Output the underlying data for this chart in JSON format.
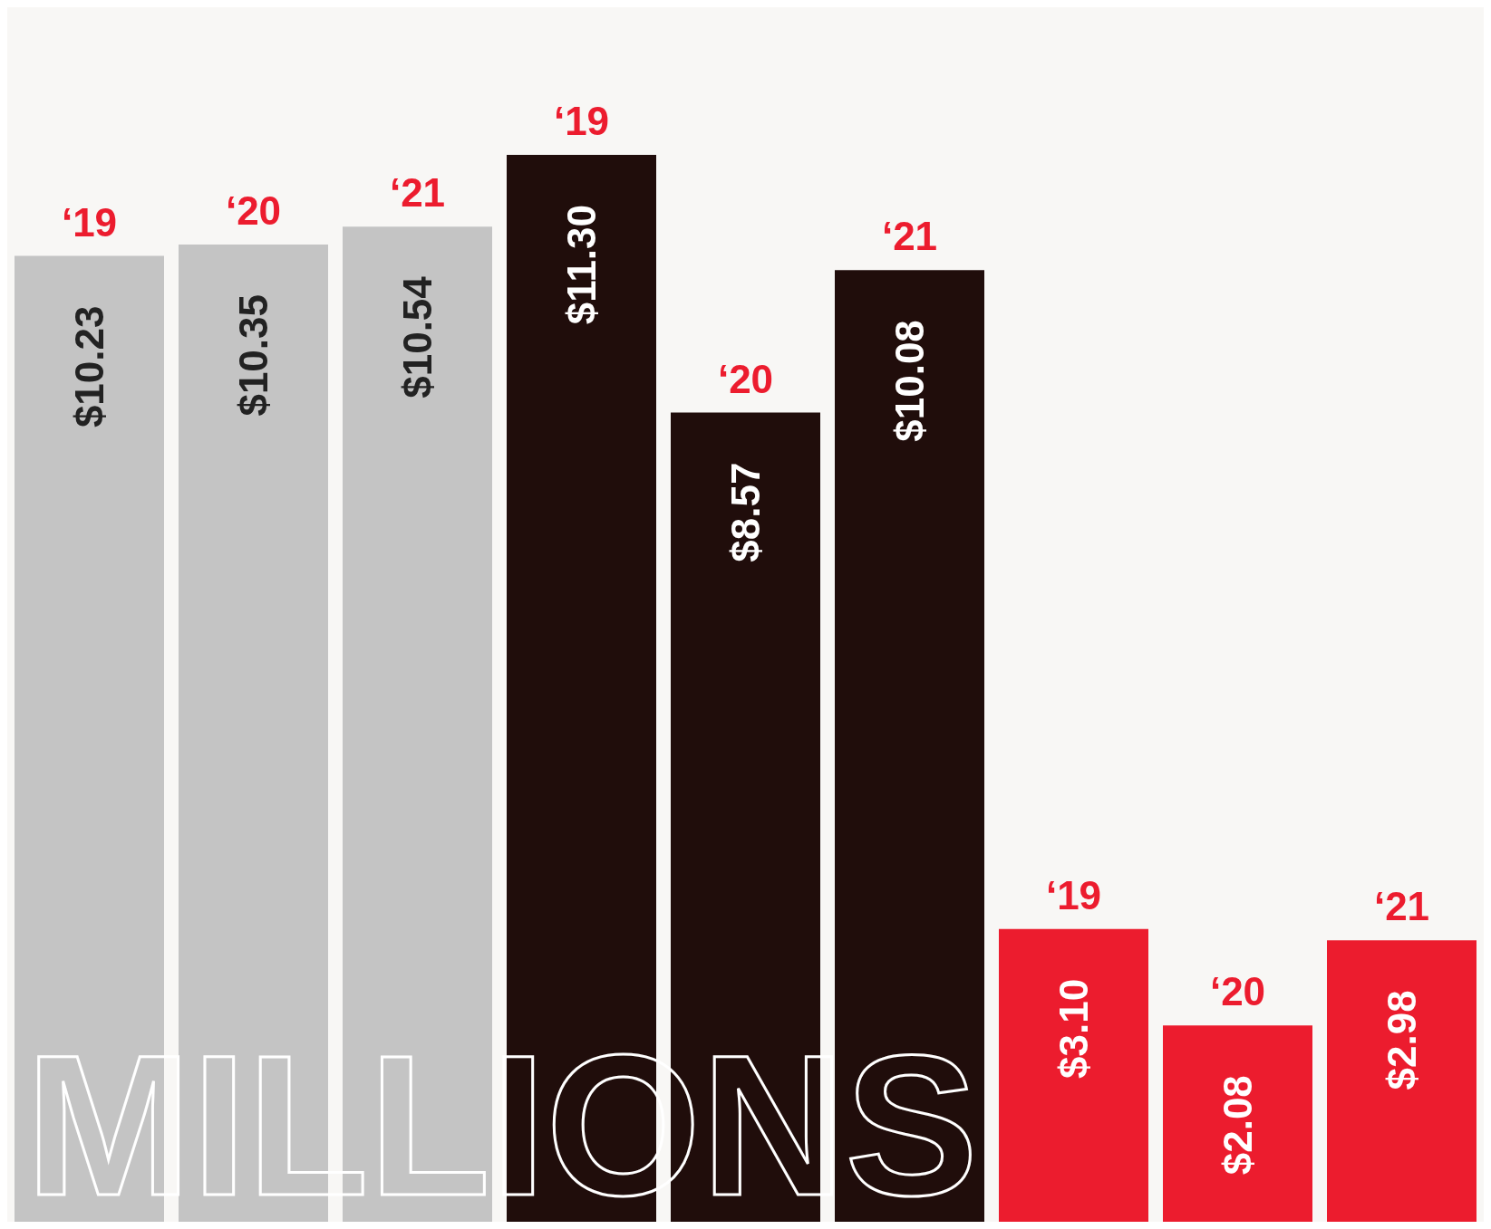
{
  "chart_data": {
    "type": "bar",
    "categories": [
      "‘19",
      "‘20",
      "‘21",
      "‘19",
      "‘20",
      "‘21",
      "‘19",
      "‘20",
      "‘21"
    ],
    "values": [
      10.23,
      10.35,
      10.54,
      11.3,
      8.57,
      10.08,
      3.1,
      2.08,
      2.98
    ],
    "value_labels": [
      "$10.23",
      "$10.35",
      "$10.54",
      "$11.30",
      "$8.57",
      "$10.08",
      "$3.10",
      "$2.08",
      "$2.98"
    ],
    "colors": [
      "#c4c4c4",
      "#c4c4c4",
      "#c4c4c4",
      "#200d0b",
      "#200d0b",
      "#200d0b",
      "#ec1c2e",
      "#ec1c2e",
      "#ec1c2e"
    ],
    "annotations": [
      "MILLIONS"
    ]
  }
}
